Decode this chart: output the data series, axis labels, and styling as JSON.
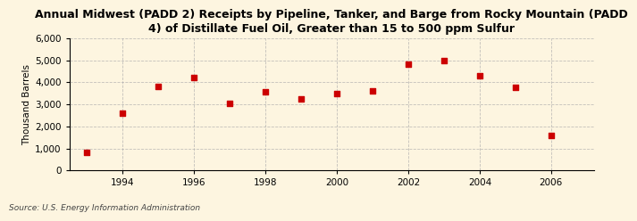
{
  "title": "Annual Midwest (PADD 2) Receipts by Pipeline, Tanker, and Barge from Rocky Mountain (PADD\n4) of Distillate Fuel Oil, Greater than 15 to 500 ppm Sulfur",
  "ylabel": "Thousand Barrels",
  "source": "Source: U.S. Energy Information Administration",
  "years": [
    1993,
    1994,
    1995,
    1996,
    1997,
    1998,
    1999,
    2000,
    2001,
    2002,
    2003,
    2004,
    2005,
    2006
  ],
  "values": [
    800,
    2600,
    3800,
    4200,
    3050,
    3550,
    3250,
    3500,
    3600,
    4800,
    5000,
    4300,
    3750,
    1600
  ],
  "marker_color": "#cc0000",
  "background_color": "#fdf5e0",
  "grid_color": "#aaaaaa",
  "ylim": [
    0,
    6000
  ],
  "yticks": [
    0,
    1000,
    2000,
    3000,
    4000,
    5000,
    6000
  ],
  "xlim": [
    1992.5,
    2007.2
  ],
  "xticks": [
    1994,
    1996,
    1998,
    2000,
    2002,
    2004,
    2006
  ],
  "title_fontsize": 9.0,
  "tick_fontsize": 7.5,
  "ylabel_fontsize": 7.5,
  "source_fontsize": 6.5
}
